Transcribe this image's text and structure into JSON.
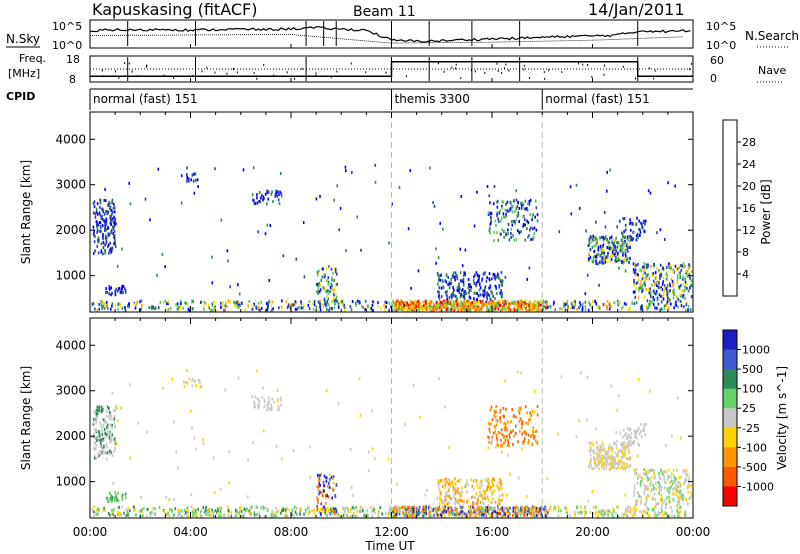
{
  "header": {
    "station": "Kapuskasing (fitACF)",
    "beam": "Beam 11",
    "date": "14/Jan/2011"
  },
  "labels": {
    "nsky": "N.Sky",
    "nsearch": "N.Search",
    "freq": "Freq.",
    "mhz": "[MHz]",
    "nave": "Nave",
    "cpid": "CPID",
    "time_axis": "Time UT"
  },
  "colors": {
    "power_scale": [
      "#0000ff",
      "#2a3fb4",
      "#2e8b57",
      "#5ac85a",
      "#f0e000",
      "#ffa500",
      "#ff6a00",
      "#ff0000"
    ],
    "velocity_scale": [
      "#1e1ec8",
      "#3c5ad2",
      "#2e8b57",
      "#64d264",
      "#c8c8c8",
      "#ffd200",
      "#ff9600",
      "#ff5a00",
      "#ff0000"
    ]
  },
  "chart_data": [
    {
      "type": "line",
      "name": "noise-panel",
      "x_ticks": [
        "00:00",
        "04:00",
        "08:00",
        "12:00",
        "16:00",
        "20:00",
        "00:00"
      ],
      "y_left_ticks": [
        "10^5",
        "10^0"
      ],
      "y_right_ticks": [
        "10^5",
        "10^0"
      ],
      "series": [
        {
          "values": [
            [
              0,
              3.2
            ],
            [
              1,
              3.4
            ],
            [
              2,
              3.3
            ],
            [
              3,
              3.5
            ],
            [
              4,
              3.3
            ],
            [
              5,
              3.4
            ],
            [
              6,
              3.5
            ],
            [
              7,
              3.4
            ],
            [
              8,
              3.6
            ],
            [
              9,
              3.8
            ],
            [
              10,
              3.5
            ],
            [
              11,
              3.3
            ],
            [
              12,
              1.2
            ],
            [
              13,
              1.0
            ],
            [
              14,
              1.1
            ],
            [
              15,
              1.3
            ],
            [
              16,
              1.5
            ],
            [
              17,
              1.6
            ],
            [
              18,
              1.8
            ],
            [
              19,
              2.0
            ],
            [
              20,
              2.1
            ],
            [
              21,
              2.3
            ],
            [
              22,
              3.2
            ],
            [
              23,
              3.0
            ],
            [
              24,
              3.3
            ]
          ]
        },
        {
          "values": [
            [
              0,
              2.2
            ],
            [
              4,
              2.3
            ],
            [
              8,
              2.4
            ],
            [
              12,
              0.6
            ],
            [
              16,
              0.8
            ],
            [
              20,
              1.2
            ],
            [
              24,
              2.0
            ]
          ]
        }
      ]
    },
    {
      "type": "line",
      "name": "freq-nave-panel",
      "y_left_ticks": [
        "18",
        "8"
      ],
      "y_right_ticks": [
        "60",
        "0"
      ],
      "freq_segments": [
        [
          0,
          10
        ],
        [
          12,
          10
        ],
        [
          12,
          16
        ],
        [
          21.8,
          16
        ],
        [
          21.8,
          10
        ],
        [
          24,
          10
        ]
      ],
      "nave_level": 13
    },
    {
      "type": "table",
      "name": "cpid-bar",
      "segments": [
        {
          "start": 0,
          "label": "normal (fast) 151"
        },
        {
          "start": 12,
          "label": "themis 3300"
        },
        {
          "start": 18,
          "label": "normal (fast) 151"
        }
      ]
    },
    {
      "type": "heatmap",
      "name": "power-panel",
      "ylabel": "Slant Range [km]",
      "y_ticks": [
        1000,
        2000,
        3000,
        4000
      ],
      "ylim": [
        200,
        4600
      ],
      "xlim": [
        0,
        24
      ],
      "colorbar_label": "Power [dB]",
      "colorbar_ticks": [
        "28",
        "24",
        "20",
        "16",
        "12",
        "8",
        "4"
      ],
      "clusters": [
        {
          "t": [
            0.0,
            24.0
          ],
          "r": [
            200,
            480
          ],
          "n": 700,
          "c": [
            0,
            1,
            2,
            3,
            4,
            5
          ]
        },
        {
          "t": [
            12.0,
            18.2
          ],
          "r": [
            200,
            480
          ],
          "n": 700,
          "c": [
            3,
            4,
            5,
            6,
            7
          ]
        },
        {
          "t": [
            0.1,
            1.0
          ],
          "r": [
            1500,
            2700
          ],
          "n": 150,
          "c": [
            0,
            1,
            1,
            2
          ]
        },
        {
          "t": [
            0.6,
            1.4
          ],
          "r": [
            600,
            800
          ],
          "n": 30,
          "c": [
            0,
            1
          ]
        },
        {
          "t": [
            3.6,
            4.4
          ],
          "r": [
            3100,
            3300
          ],
          "n": 15,
          "c": [
            0,
            1
          ]
        },
        {
          "t": [
            6.4,
            7.6
          ],
          "r": [
            2600,
            2900
          ],
          "n": 40,
          "c": [
            0,
            1,
            2
          ]
        },
        {
          "t": [
            9.0,
            9.8
          ],
          "r": [
            300,
            1200
          ],
          "n": 80,
          "c": [
            0,
            1,
            2,
            3,
            4
          ]
        },
        {
          "t": [
            13.8,
            16.4
          ],
          "r": [
            500,
            1100
          ],
          "n": 200,
          "c": [
            0,
            1,
            2
          ]
        },
        {
          "t": [
            15.8,
            17.8
          ],
          "r": [
            1800,
            2700
          ],
          "n": 140,
          "c": [
            0,
            1,
            2,
            3
          ]
        },
        {
          "t": [
            19.8,
            21.5
          ],
          "r": [
            1300,
            1900
          ],
          "n": 220,
          "c": [
            0,
            1,
            2,
            3,
            4
          ]
        },
        {
          "t": [
            20.9,
            22.1
          ],
          "r": [
            1800,
            2300
          ],
          "n": 50,
          "c": [
            0,
            1,
            2
          ]
        },
        {
          "t": [
            21.6,
            24.0
          ],
          "r": [
            500,
            1300
          ],
          "n": 240,
          "c": [
            0,
            1,
            2,
            3,
            4,
            5
          ]
        },
        {
          "t": [
            0.5,
            23.5
          ],
          "r": [
            600,
            3500
          ],
          "n": 120,
          "c": [
            0,
            1,
            2
          ]
        }
      ]
    },
    {
      "type": "heatmap",
      "name": "velocity-panel",
      "ylabel": "Slant Range [km]",
      "y_ticks": [
        1000,
        2000,
        3000,
        4000
      ],
      "ylim": [
        200,
        4600
      ],
      "xlim": [
        0,
        24
      ],
      "colorbar_label": "Velocity [m s^-1]",
      "colorbar_ticks": [
        "1000",
        "500",
        "100",
        "25",
        "-25",
        "-100",
        "-500",
        "-1000"
      ],
      "clusters": [
        {
          "t": [
            0.0,
            12.0
          ],
          "r": [
            200,
            480
          ],
          "n": 500,
          "c": [
            2,
            3,
            4,
            5
          ]
        },
        {
          "t": [
            12.0,
            18.2
          ],
          "r": [
            200,
            480
          ],
          "n": 700,
          "c": [
            0,
            1,
            3,
            4,
            5,
            6,
            7
          ]
        },
        {
          "t": [
            18.2,
            24.0
          ],
          "r": [
            200,
            480
          ],
          "n": 200,
          "c": [
            3,
            4,
            5
          ]
        },
        {
          "t": [
            0.1,
            1.0
          ],
          "r": [
            1500,
            2700
          ],
          "n": 150,
          "c": [
            4,
            4,
            2
          ]
        },
        {
          "t": [
            0.6,
            1.4
          ],
          "r": [
            600,
            800
          ],
          "n": 30,
          "c": [
            3,
            2
          ]
        },
        {
          "t": [
            3.6,
            4.4
          ],
          "r": [
            3100,
            3300
          ],
          "n": 15,
          "c": [
            4,
            5
          ]
        },
        {
          "t": [
            6.4,
            7.6
          ],
          "r": [
            2600,
            2900
          ],
          "n": 40,
          "c": [
            4,
            4
          ]
        },
        {
          "t": [
            9.0,
            9.8
          ],
          "r": [
            300,
            1200
          ],
          "n": 80,
          "c": [
            0,
            1,
            5,
            6,
            7
          ]
        },
        {
          "t": [
            13.8,
            16.4
          ],
          "r": [
            500,
            1100
          ],
          "n": 200,
          "c": [
            5,
            6,
            4
          ]
        },
        {
          "t": [
            15.8,
            17.8
          ],
          "r": [
            1800,
            2700
          ],
          "n": 140,
          "c": [
            6,
            7,
            6
          ]
        },
        {
          "t": [
            19.8,
            21.5
          ],
          "r": [
            1300,
            1900
          ],
          "n": 220,
          "c": [
            4,
            4,
            5
          ]
        },
        {
          "t": [
            20.9,
            22.1
          ],
          "r": [
            1800,
            2300
          ],
          "n": 50,
          "c": [
            4,
            4
          ]
        },
        {
          "t": [
            21.6,
            24.0
          ],
          "r": [
            500,
            1300
          ],
          "n": 240,
          "c": [
            3,
            4,
            5,
            4
          ]
        },
        {
          "t": [
            0.5,
            23.5
          ],
          "r": [
            600,
            3500
          ],
          "n": 120,
          "c": [
            4,
            5
          ]
        }
      ]
    }
  ]
}
